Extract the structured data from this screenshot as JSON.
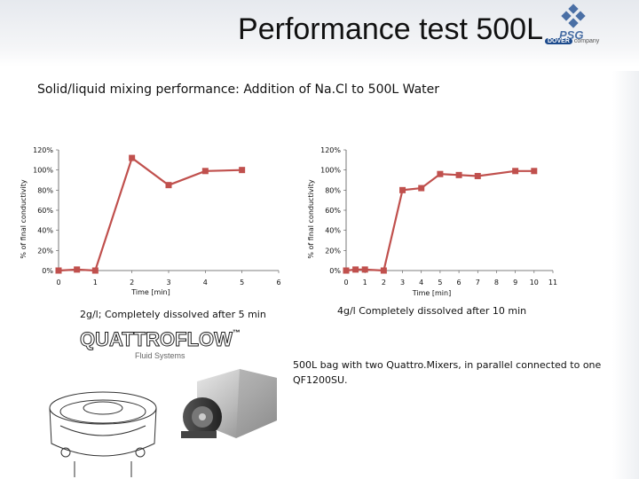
{
  "header": {
    "title": "Performance test 500L",
    "logo_company": "company"
  },
  "subtitle": "Solid/liquid mixing performance: Addition of  Na.Cl to 500L Water",
  "chart_data": [
    {
      "type": "line",
      "xlabel": "Time [min]",
      "ylabel": "% of final conductivity",
      "xlim": [
        0,
        6
      ],
      "ylim": [
        0,
        120
      ],
      "xticks": [
        0,
        1,
        2,
        3,
        4,
        5,
        6
      ],
      "yticks": [
        0,
        20,
        40,
        60,
        80,
        100,
        120
      ],
      "ytick_labels": [
        "0%",
        "20%",
        "40%",
        "60%",
        "80%",
        "100%",
        "120%"
      ],
      "grid": false,
      "color": "#c0504d",
      "series": [
        {
          "x": [
            0,
            0.5,
            1,
            2,
            3,
            4,
            5
          ],
          "y": [
            0,
            1,
            0,
            112,
            85,
            99,
            100
          ]
        }
      ],
      "caption": "2g/l; Completely dissolved after 5 min"
    },
    {
      "type": "line",
      "xlabel": "Time [min]",
      "ylabel": "% of final conductivity",
      "xlim": [
        0,
        11
      ],
      "ylim": [
        0,
        120
      ],
      "xticks": [
        0,
        1,
        2,
        3,
        4,
        5,
        6,
        7,
        8,
        9,
        10,
        11
      ],
      "yticks": [
        0,
        20,
        40,
        60,
        80,
        100,
        120
      ],
      "ytick_labels": [
        "0%",
        "20%",
        "40%",
        "60%",
        "80%",
        "100%",
        "120%"
      ],
      "grid": false,
      "color": "#c0504d",
      "series": [
        {
          "x": [
            0,
            0.5,
            1,
            2,
            3,
            4,
            5,
            6,
            7,
            9,
            10
          ],
          "y": [
            0,
            1,
            1,
            0,
            80,
            82,
            96,
            95,
            94,
            99,
            99
          ]
        }
      ],
      "caption": "4g/l Completely dissolved after 10 min"
    }
  ],
  "note": "500L bag with two Quattro.Mixers, in parallel connected to one QF1200SU.",
  "brand": {
    "quattroflow": "QUATTROFLOW",
    "tm": "™",
    "sub": "Fluid Systems"
  },
  "colors": {
    "accent": "#c0504d",
    "psg_blue": "#1c4a8c"
  }
}
